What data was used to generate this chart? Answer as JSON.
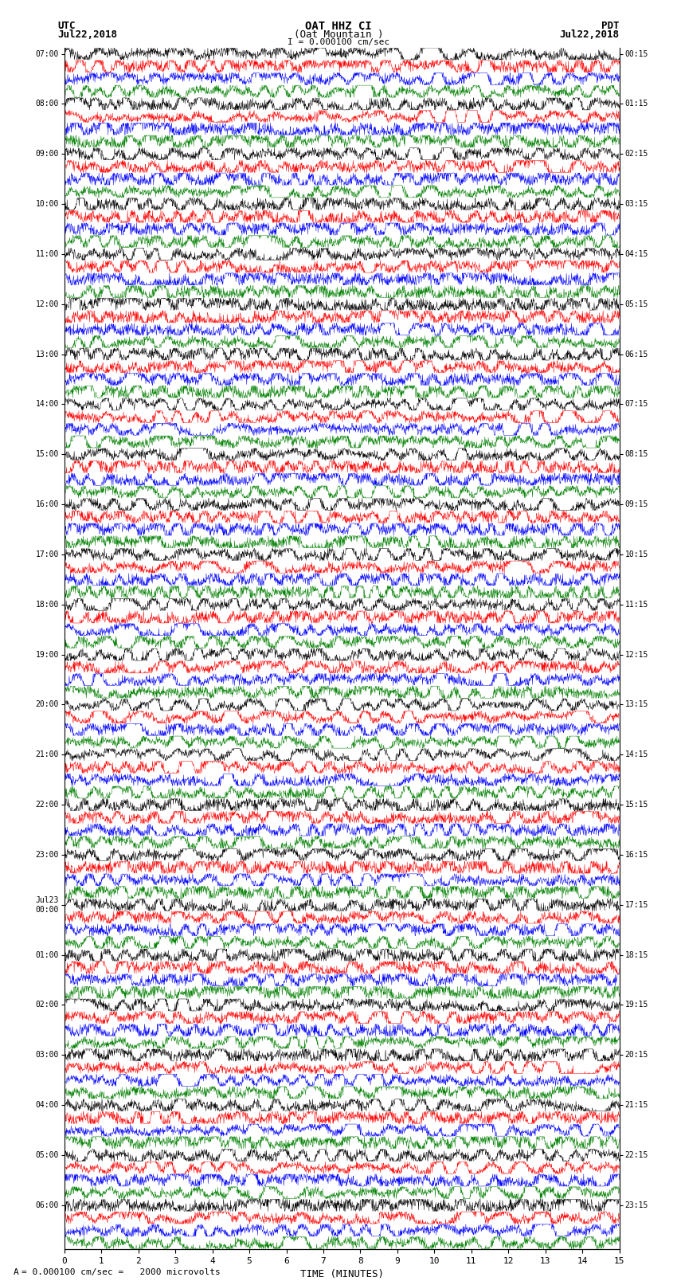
{
  "title_line1": "OAT HHZ CI",
  "title_line2": "(Oat Mountain )",
  "title_scale": "I = 0.000100 cm/sec",
  "left_label_top": "UTC",
  "left_label_date": "Jul22,2018",
  "right_label_top": "PDT",
  "right_label_date": "Jul22,2018",
  "bottom_label": "TIME (MINUTES)",
  "scale_label": "= 0.000100 cm/sec =   2000 microvolts",
  "scale_tick": "A",
  "utc_times": [
    "07:00",
    "08:00",
    "09:00",
    "10:00",
    "11:00",
    "12:00",
    "13:00",
    "14:00",
    "15:00",
    "16:00",
    "17:00",
    "18:00",
    "19:00",
    "20:00",
    "21:00",
    "22:00",
    "23:00",
    "Jul23\n00:00",
    "01:00",
    "02:00",
    "03:00",
    "04:00",
    "05:00",
    "06:00"
  ],
  "pdt_times": [
    "00:15",
    "01:15",
    "02:15",
    "03:15",
    "04:15",
    "05:15",
    "06:15",
    "07:15",
    "08:15",
    "09:15",
    "10:15",
    "11:15",
    "12:15",
    "13:15",
    "14:15",
    "15:15",
    "16:15",
    "17:15",
    "18:15",
    "19:15",
    "20:15",
    "21:15",
    "22:15",
    "23:15"
  ],
  "n_rows": 24,
  "n_traces_per_row": 4,
  "x_ticks": [
    0,
    1,
    2,
    3,
    4,
    5,
    6,
    7,
    8,
    9,
    10,
    11,
    12,
    13,
    14,
    15
  ],
  "trace_colors": [
    "black",
    "red",
    "blue",
    "green"
  ],
  "bg_color": "white",
  "fig_width": 8.5,
  "fig_height": 16.13
}
